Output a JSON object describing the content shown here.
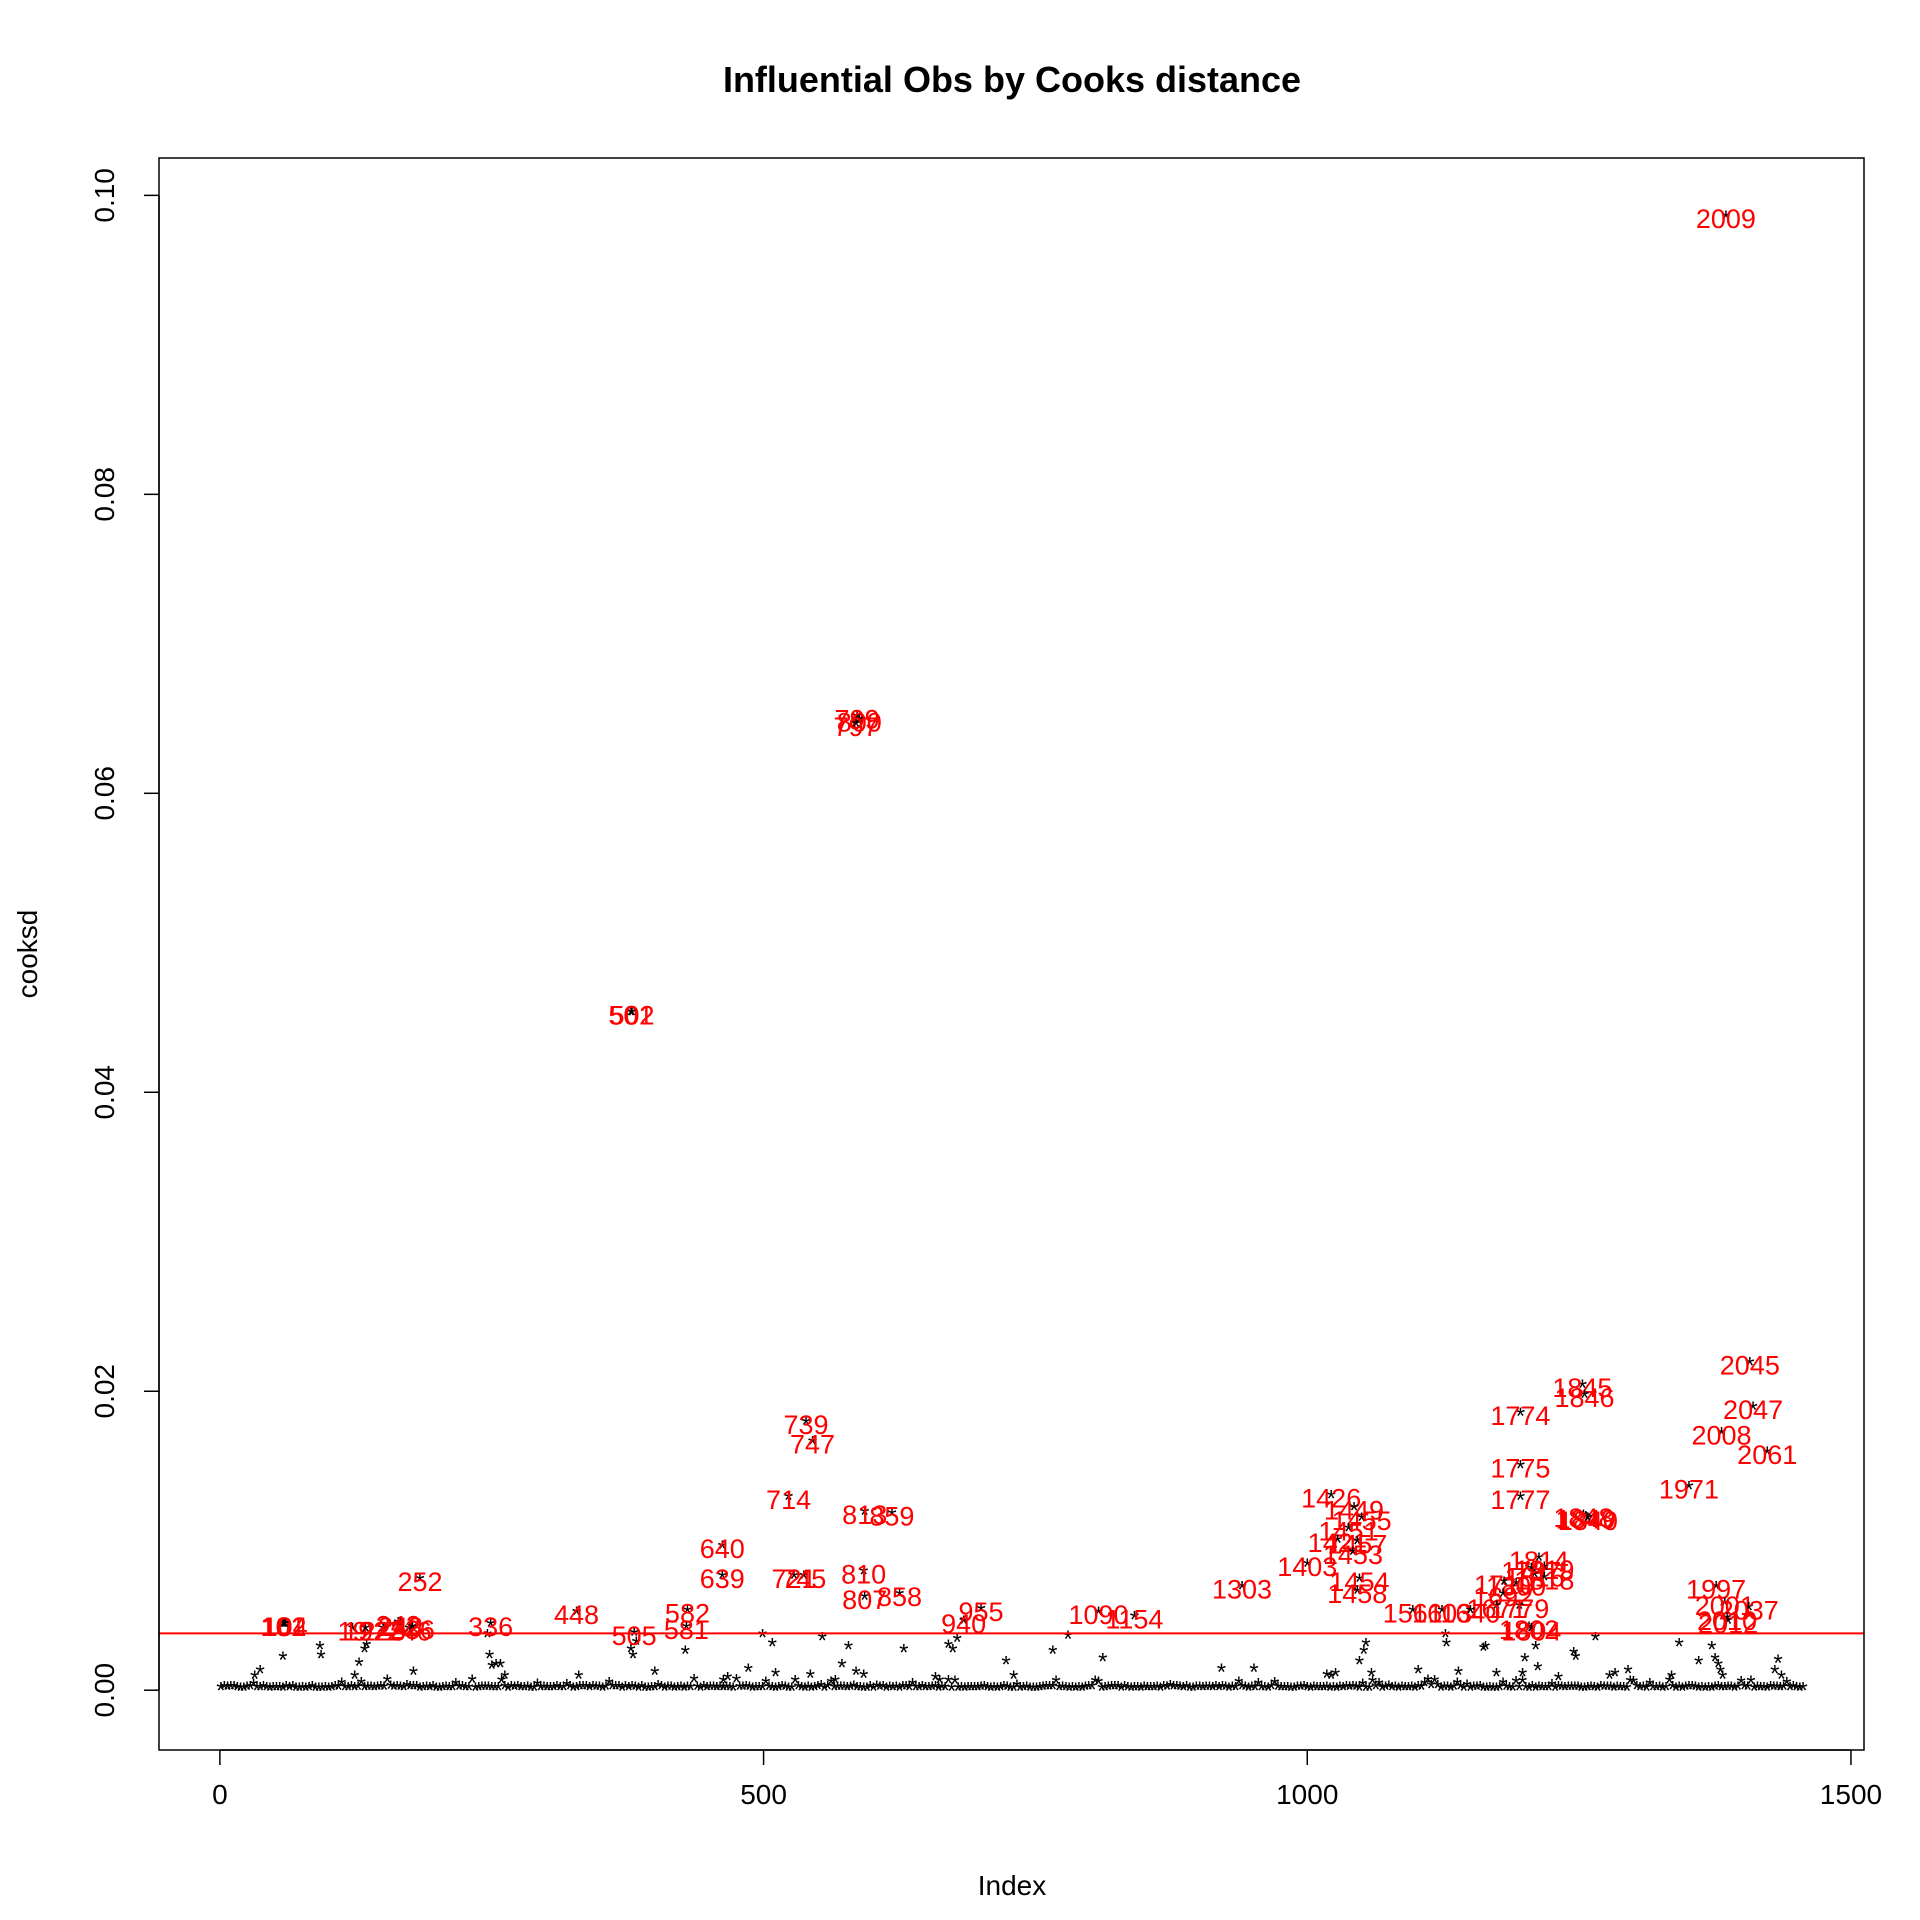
{
  "chart_data": {
    "type": "scatter",
    "title": "Influential Obs by Cooks distance",
    "xlabel": "Index",
    "ylabel": "cooksd",
    "xlim": [
      -56,
      1512
    ],
    "ylim": [
      -0.004,
      0.1025
    ],
    "xticks": [
      0,
      500,
      1000,
      1500
    ],
    "yticks": [
      0.0,
      0.02,
      0.04,
      0.06,
      0.08,
      0.1
    ],
    "ytick_labels": [
      "0.00",
      "0.02",
      "0.04",
      "0.06",
      "0.08",
      "0.10"
    ],
    "grid": false,
    "legend": "none",
    "marker": "*",
    "point_color": "#000000",
    "label_color": "#ff0000",
    "threshold": {
      "y": 0.0038,
      "color": "#ff0000"
    },
    "labeled_points": [
      {
        "x": 1385,
        "y": 0.0985,
        "label": "2009"
      },
      {
        "x": 586,
        "y": 0.065,
        "label": "799"
      },
      {
        "x": 588,
        "y": 0.0648,
        "label": "800"
      },
      {
        "x": 585,
        "y": 0.0645,
        "label": "797"
      },
      {
        "x": 378,
        "y": 0.0452,
        "label": "501"
      },
      {
        "x": 379,
        "y": 0.0452,
        "label": "502"
      },
      {
        "x": 1407,
        "y": 0.0218,
        "label": "2045"
      },
      {
        "x": 1253,
        "y": 0.0203,
        "label": "1845"
      },
      {
        "x": 1255,
        "y": 0.0196,
        "label": "1846"
      },
      {
        "x": 1196,
        "y": 0.0184,
        "label": "1774"
      },
      {
        "x": 1410,
        "y": 0.0188,
        "label": "2047"
      },
      {
        "x": 1381,
        "y": 0.0171,
        "label": "2008"
      },
      {
        "x": 1423,
        "y": 0.0158,
        "label": "2061"
      },
      {
        "x": 539,
        "y": 0.0178,
        "label": "739"
      },
      {
        "x": 545,
        "y": 0.0165,
        "label": "747"
      },
      {
        "x": 1196,
        "y": 0.0149,
        "label": "1775"
      },
      {
        "x": 1196,
        "y": 0.0128,
        "label": "1777"
      },
      {
        "x": 1351,
        "y": 0.0135,
        "label": "1971"
      },
      {
        "x": 523,
        "y": 0.0128,
        "label": "714"
      },
      {
        "x": 1022,
        "y": 0.0129,
        "label": "1426"
      },
      {
        "x": 1043,
        "y": 0.0121,
        "label": "1449"
      },
      {
        "x": 1050,
        "y": 0.0114,
        "label": "1455"
      },
      {
        "x": 1038,
        "y": 0.0107,
        "label": "1451"
      },
      {
        "x": 1028,
        "y": 0.0099,
        "label": "1421"
      },
      {
        "x": 1046,
        "y": 0.0098,
        "label": "1457"
      },
      {
        "x": 1042,
        "y": 0.0091,
        "label": "1453"
      },
      {
        "x": 1000,
        "y": 0.0083,
        "label": "1403"
      },
      {
        "x": 1048,
        "y": 0.0073,
        "label": "1454"
      },
      {
        "x": 1046,
        "y": 0.0065,
        "label": "1458"
      },
      {
        "x": 1254,
        "y": 0.0116,
        "label": "1848"
      },
      {
        "x": 1256,
        "y": 0.0115,
        "label": "1849"
      },
      {
        "x": 1258,
        "y": 0.0114,
        "label": "1840"
      },
      {
        "x": 593,
        "y": 0.0118,
        "label": "813"
      },
      {
        "x": 618,
        "y": 0.0117,
        "label": "859"
      },
      {
        "x": 462,
        "y": 0.0095,
        "label": "640"
      },
      {
        "x": 462,
        "y": 0.0075,
        "label": "639"
      },
      {
        "x": 528,
        "y": 0.0075,
        "label": "721"
      },
      {
        "x": 537,
        "y": 0.0075,
        "label": "745"
      },
      {
        "x": 592,
        "y": 0.0078,
        "label": "810"
      },
      {
        "x": 593,
        "y": 0.0061,
        "label": "807"
      },
      {
        "x": 625,
        "y": 0.0063,
        "label": "858"
      },
      {
        "x": 1213,
        "y": 0.0087,
        "label": "1814"
      },
      {
        "x": 1218,
        "y": 0.0081,
        "label": "1819"
      },
      {
        "x": 1206,
        "y": 0.008,
        "label": "1797"
      },
      {
        "x": 1209,
        "y": 0.0076,
        "label": "1816"
      },
      {
        "x": 1218,
        "y": 0.0074,
        "label": "1818"
      },
      {
        "x": 1192,
        "y": 0.007,
        "label": "1800"
      },
      {
        "x": 1181,
        "y": 0.0071,
        "label": "1710"
      },
      {
        "x": 1180,
        "y": 0.0063,
        "label": "1692"
      },
      {
        "x": 1195,
        "y": 0.0055,
        "label": "1779"
      },
      {
        "x": 1174,
        "y": 0.0055,
        "label": "1671"
      },
      {
        "x": 1097,
        "y": 0.0052,
        "label": "1561"
      },
      {
        "x": 1124,
        "y": 0.0052,
        "label": "1603"
      },
      {
        "x": 1150,
        "y": 0.0052,
        "label": "1640"
      },
      {
        "x": 1204,
        "y": 0.0041,
        "label": "1802"
      },
      {
        "x": 1206,
        "y": 0.004,
        "label": "1804"
      },
      {
        "x": 1376,
        "y": 0.0068,
        "label": "1997"
      },
      {
        "x": 1384,
        "y": 0.0057,
        "label": "2001"
      },
      {
        "x": 1406,
        "y": 0.0054,
        "label": "2037"
      },
      {
        "x": 1386,
        "y": 0.0047,
        "label": "2010"
      },
      {
        "x": 1387,
        "y": 0.0045,
        "label": "2012"
      },
      {
        "x": 940,
        "y": 0.0068,
        "label": "1303"
      },
      {
        "x": 808,
        "y": 0.0051,
        "label": "1090"
      },
      {
        "x": 841,
        "y": 0.0048,
        "label": "1154"
      },
      {
        "x": 700,
        "y": 0.0053,
        "label": "955"
      },
      {
        "x": 684,
        "y": 0.0045,
        "label": "940"
      },
      {
        "x": 184,
        "y": 0.0073,
        "label": "252"
      },
      {
        "x": 249,
        "y": 0.0043,
        "label": "336"
      },
      {
        "x": 328,
        "y": 0.0051,
        "label": "448"
      },
      {
        "x": 430,
        "y": 0.0052,
        "label": "582"
      },
      {
        "x": 429,
        "y": 0.0041,
        "label": "581"
      },
      {
        "x": 381,
        "y": 0.0037,
        "label": "505"
      },
      {
        "x": 58,
        "y": 0.0043,
        "label": "101"
      },
      {
        "x": 59,
        "y": 0.0043,
        "label": "102"
      },
      {
        "x": 60,
        "y": 0.0043,
        "label": "104"
      },
      {
        "x": 122,
        "y": 0.004,
        "label": "19"
      },
      {
        "x": 134,
        "y": 0.004,
        "label": "192"
      },
      {
        "x": 150,
        "y": 0.004,
        "label": "223"
      },
      {
        "x": 164,
        "y": 0.0044,
        "label": "242"
      },
      {
        "x": 166,
        "y": 0.0043,
        "label": "243"
      },
      {
        "x": 174,
        "y": 0.004,
        "label": "246"
      },
      {
        "x": 177,
        "y": 0.0041,
        "label": "236"
      }
    ],
    "outliers_unlabeled": [
      [
        32,
        0.0008
      ],
      [
        37,
        0.0012
      ],
      [
        58,
        0.0021
      ],
      [
        92,
        0.0028
      ],
      [
        93,
        0.0022
      ],
      [
        124,
        0.0008
      ],
      [
        128,
        0.0017
      ],
      [
        133,
        0.0026
      ],
      [
        135,
        0.0029
      ],
      [
        178,
        0.0011
      ],
      [
        246,
        0.0036
      ],
      [
        248,
        0.0022
      ],
      [
        250,
        0.0015
      ],
      [
        254,
        0.0016
      ],
      [
        258,
        0.0016
      ],
      [
        262,
        0.0008
      ],
      [
        330,
        0.0008
      ],
      [
        378,
        0.0026
      ],
      [
        380,
        0.0022
      ],
      [
        383,
        0.0031
      ],
      [
        400,
        0.0011
      ],
      [
        428,
        0.0025
      ],
      [
        463,
        0.0005
      ],
      [
        467,
        0.0007
      ],
      [
        486,
        0.0013
      ],
      [
        499,
        0.0036
      ],
      [
        508,
        0.003
      ],
      [
        511,
        0.001
      ],
      [
        543,
        0.0009
      ],
      [
        554,
        0.0034
      ],
      [
        566,
        0.0005
      ],
      [
        572,
        0.0016
      ],
      [
        578,
        0.0028
      ],
      [
        585,
        0.0011
      ],
      [
        592,
        0.0009
      ],
      [
        629,
        0.0026
      ],
      [
        658,
        0.0007
      ],
      [
        662,
        0.0005
      ],
      [
        670,
        0.0029
      ],
      [
        674,
        0.0026
      ],
      [
        678,
        0.0033
      ],
      [
        723,
        0.0018
      ],
      [
        730,
        0.0008
      ],
      [
        766,
        0.0025
      ],
      [
        780,
        0.0035
      ],
      [
        812,
        0.002
      ],
      [
        921,
        0.0013
      ],
      [
        951,
        0.0013
      ],
      [
        1018,
        0.0009
      ],
      [
        1022,
        0.0008
      ],
      [
        1026,
        0.001
      ],
      [
        1048,
        0.0018
      ],
      [
        1052,
        0.0025
      ],
      [
        1054,
        0.003
      ],
      [
        1059,
        0.001
      ],
      [
        1102,
        0.0012
      ],
      [
        1127,
        0.0036
      ],
      [
        1128,
        0.003
      ],
      [
        1139,
        0.0011
      ],
      [
        1162,
        0.0027
      ],
      [
        1164,
        0.0028
      ],
      [
        1174,
        0.001
      ],
      [
        1198,
        0.001
      ],
      [
        1200,
        0.002
      ],
      [
        1210,
        0.0028
      ],
      [
        1212,
        0.0014
      ],
      [
        1231,
        0.0007
      ],
      [
        1245,
        0.0024
      ],
      [
        1247,
        0.0021
      ],
      [
        1265,
        0.0034
      ],
      [
        1278,
        0.0008
      ],
      [
        1283,
        0.001
      ],
      [
        1295,
        0.0012
      ],
      [
        1335,
        0.0008
      ],
      [
        1342,
        0.003
      ],
      [
        1360,
        0.0018
      ],
      [
        1372,
        0.0028
      ],
      [
        1375,
        0.002
      ],
      [
        1378,
        0.0016
      ],
      [
        1380,
        0.0012
      ],
      [
        1382,
        0.0008
      ],
      [
        1430,
        0.0012
      ],
      [
        1433,
        0.0019
      ],
      [
        1436,
        0.0008
      ]
    ]
  }
}
